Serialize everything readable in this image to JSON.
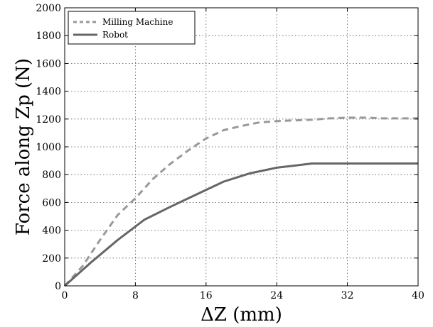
{
  "chart_data": {
    "type": "line",
    "title": "",
    "xlabel": "ΔZ (mm)",
    "ylabel": "Force along Zp (N)",
    "xlim": [
      0,
      40
    ],
    "ylim": [
      0,
      2000
    ],
    "xticks": [
      0,
      8,
      16,
      24,
      32,
      40
    ],
    "yticks": [
      0,
      200,
      400,
      600,
      800,
      1000,
      1200,
      1400,
      1600,
      1800,
      2000
    ],
    "grid": true,
    "legend_position": "top-left",
    "series": [
      {
        "name": "Milling Machine",
        "style": "dashed",
        "color": "#999999",
        "x": [
          0,
          2,
          4,
          6,
          8,
          10,
          12,
          14,
          16,
          18,
          20,
          22,
          24,
          26,
          28,
          30,
          32,
          34,
          36,
          38,
          40
        ],
        "y": [
          0,
          140,
          330,
          510,
          630,
          770,
          880,
          975,
          1060,
          1120,
          1150,
          1175,
          1185,
          1190,
          1195,
          1205,
          1210,
          1210,
          1205,
          1205,
          1205
        ]
      },
      {
        "name": "Robot",
        "style": "solid",
        "color": "#666666",
        "x": [
          0,
          3,
          6,
          9,
          12,
          15,
          18,
          21,
          24,
          26,
          28,
          30,
          32,
          34,
          36,
          38,
          40
        ],
        "y": [
          0,
          170,
          330,
          475,
          570,
          660,
          750,
          810,
          850,
          865,
          880,
          880,
          880,
          880,
          880,
          880,
          880
        ]
      }
    ]
  }
}
